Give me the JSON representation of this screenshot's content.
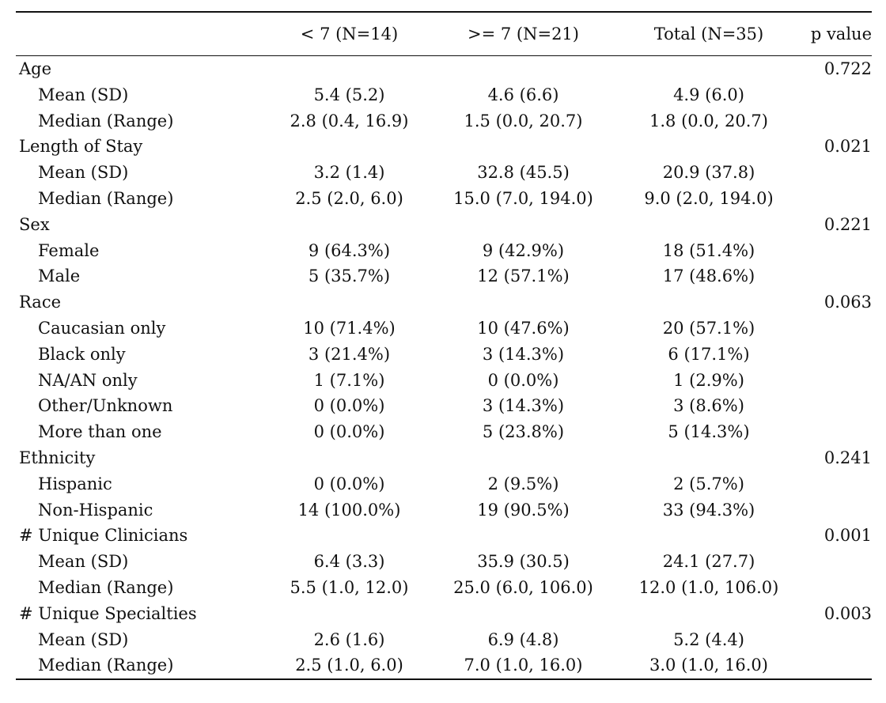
{
  "header": {
    "columns": [
      "",
      "< 7 (N=14)",
      ">= 7 (N=21)",
      "Total (N=35)",
      "p value"
    ]
  },
  "groups": [
    {
      "name": "Age",
      "p": "0.722",
      "rows": [
        {
          "label": "Mean (SD)",
          "v1": "5.4 (5.2)",
          "v2": "4.6 (6.6)",
          "v3": "4.9 (6.0)"
        },
        {
          "label": "Median (Range)",
          "v1": "2.8 (0.4, 16.9)",
          "v2": "1.5 (0.0, 20.7)",
          "v3": "1.8 (0.0, 20.7)"
        }
      ]
    },
    {
      "name": "Length of Stay",
      "p": "0.021",
      "rows": [
        {
          "label": "Mean (SD)",
          "v1": "3.2 (1.4)",
          "v2": "32.8 (45.5)",
          "v3": "20.9 (37.8)"
        },
        {
          "label": "Median (Range)",
          "v1": "2.5 (2.0, 6.0)",
          "v2": "15.0 (7.0, 194.0)",
          "v3": "9.0 (2.0, 194.0)"
        }
      ]
    },
    {
      "name": "Sex",
      "p": "0.221",
      "rows": [
        {
          "label": "Female",
          "v1": "9 (64.3%)",
          "v2": "9 (42.9%)",
          "v3": "18 (51.4%)"
        },
        {
          "label": "Male",
          "v1": "5 (35.7%)",
          "v2": "12 (57.1%)",
          "v3": "17 (48.6%)"
        }
      ]
    },
    {
      "name": "Race",
      "p": "0.063",
      "rows": [
        {
          "label": "Caucasian only",
          "v1": "10 (71.4%)",
          "v2": "10 (47.6%)",
          "v3": "20 (57.1%)"
        },
        {
          "label": "Black only",
          "v1": "3 (21.4%)",
          "v2": "3 (14.3%)",
          "v3": "6 (17.1%)"
        },
        {
          "label": "NA/AN only",
          "v1": "1 (7.1%)",
          "v2": "0 (0.0%)",
          "v3": "1 (2.9%)"
        },
        {
          "label": "Other/Unknown",
          "v1": "0 (0.0%)",
          "v2": "3 (14.3%)",
          "v3": "3 (8.6%)"
        },
        {
          "label": "More than one",
          "v1": "0 (0.0%)",
          "v2": "5 (23.8%)",
          "v3": "5 (14.3%)"
        }
      ]
    },
    {
      "name": "Ethnicity",
      "p": "0.241",
      "rows": [
        {
          "label": "Hispanic",
          "v1": "0 (0.0%)",
          "v2": "2 (9.5%)",
          "v3": "2 (5.7%)"
        },
        {
          "label": "Non-Hispanic",
          "v1": "14 (100.0%)",
          "v2": "19 (90.5%)",
          "v3": "33 (94.3%)"
        }
      ]
    },
    {
      "name": "# Unique Clinicians",
      "p": "0.001",
      "rows": [
        {
          "label": "Mean (SD)",
          "v1": "6.4 (3.3)",
          "v2": "35.9 (30.5)",
          "v3": "24.1 (27.7)"
        },
        {
          "label": "Median (Range)",
          "v1": "5.5 (1.0, 12.0)",
          "v2": "25.0 (6.0, 106.0)",
          "v3": "12.0 (1.0, 106.0)"
        }
      ]
    },
    {
      "name": "# Unique Specialties",
      "p": "0.003",
      "rows": [
        {
          "label": "Mean (SD)",
          "v1": "2.6 (1.6)",
          "v2": "6.9 (4.8)",
          "v3": "5.2 (4.4)"
        },
        {
          "label": "Median (Range)",
          "v1": "2.5 (1.0, 6.0)",
          "v2": "7.0 (1.0, 16.0)",
          "v3": "3.0 (1.0, 16.0)"
        }
      ]
    }
  ]
}
